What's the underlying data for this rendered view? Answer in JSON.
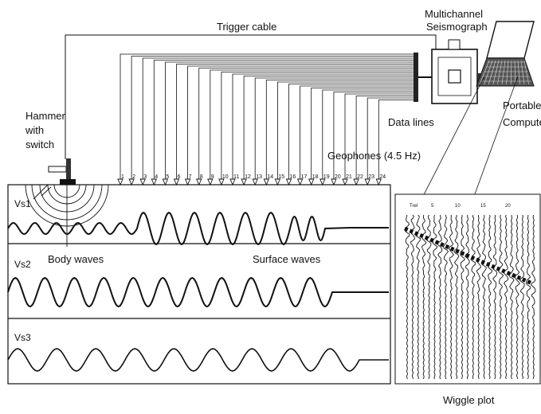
{
  "labels": {
    "trigger_cable": "Trigger cable",
    "seismograph_line1": "Multichannel",
    "seismograph_line2": "Seismograph",
    "computer_line1": "Portable",
    "computer_line2": "Computer",
    "hammer_line1": "Hammer",
    "hammer_line2": "with",
    "hammer_line3": "switch",
    "data_lines": "Data lines",
    "geophones": "Geophones (4.5 Hz)",
    "body_waves": "Body waves",
    "surface_waves": "Surface waves",
    "wiggle_plot": "Wiggle plot"
  },
  "panels": {
    "vs1": "Vs1",
    "vs2": "Vs2",
    "vs3": "Vs3"
  },
  "geophone_numbers": [
    "1",
    "2",
    "3",
    "4",
    "5",
    "6",
    "7",
    "8",
    "9",
    "10",
    "11",
    "12",
    "13",
    "14",
    "15",
    "16",
    "17",
    "18",
    "19",
    "20",
    "21",
    "22",
    "23",
    "24"
  ],
  "wiggle_header": [
    "Trel",
    "5",
    "10",
    "15",
    "20"
  ]
}
